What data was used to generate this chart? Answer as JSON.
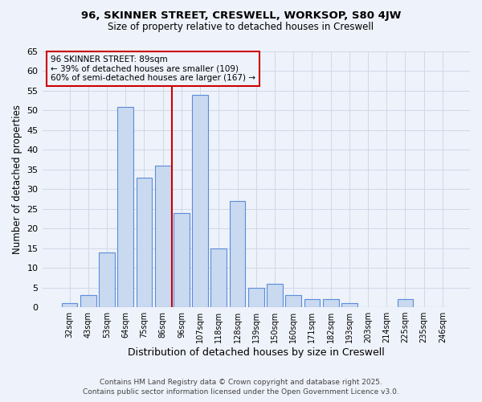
{
  "title1": "96, SKINNER STREET, CRESWELL, WORKSOP, S80 4JW",
  "title2": "Size of property relative to detached houses in Creswell",
  "xlabel": "Distribution of detached houses by size in Creswell",
  "ylabel": "Number of detached properties",
  "categories": [
    "32sqm",
    "43sqm",
    "53sqm",
    "64sqm",
    "75sqm",
    "86sqm",
    "96sqm",
    "107sqm",
    "118sqm",
    "128sqm",
    "139sqm",
    "150sqm",
    "160sqm",
    "171sqm",
    "182sqm",
    "193sqm",
    "203sqm",
    "214sqm",
    "225sqm",
    "235sqm",
    "246sqm"
  ],
  "values": [
    1,
    3,
    14,
    51,
    33,
    36,
    24,
    54,
    15,
    27,
    5,
    6,
    3,
    2,
    2,
    1,
    0,
    0,
    2,
    0,
    0
  ],
  "bar_color": "#c9d9f0",
  "bar_edge_color": "#5b8dd9",
  "grid_color": "#d0d8e8",
  "bg_color": "#eef2fa",
  "vline_x_index": 6,
  "vline_color": "#cc0000",
  "annotation_text": "96 SKINNER STREET: 89sqm\n← 39% of detached houses are smaller (109)\n60% of semi-detached houses are larger (167) →",
  "annotation_box_color": "#cc0000",
  "footer1": "Contains HM Land Registry data © Crown copyright and database right 2025.",
  "footer2": "Contains public sector information licensed under the Open Government Licence v3.0.",
  "ylim": [
    0,
    65
  ],
  "yticks": [
    0,
    5,
    10,
    15,
    20,
    25,
    30,
    35,
    40,
    45,
    50,
    55,
    60,
    65
  ]
}
